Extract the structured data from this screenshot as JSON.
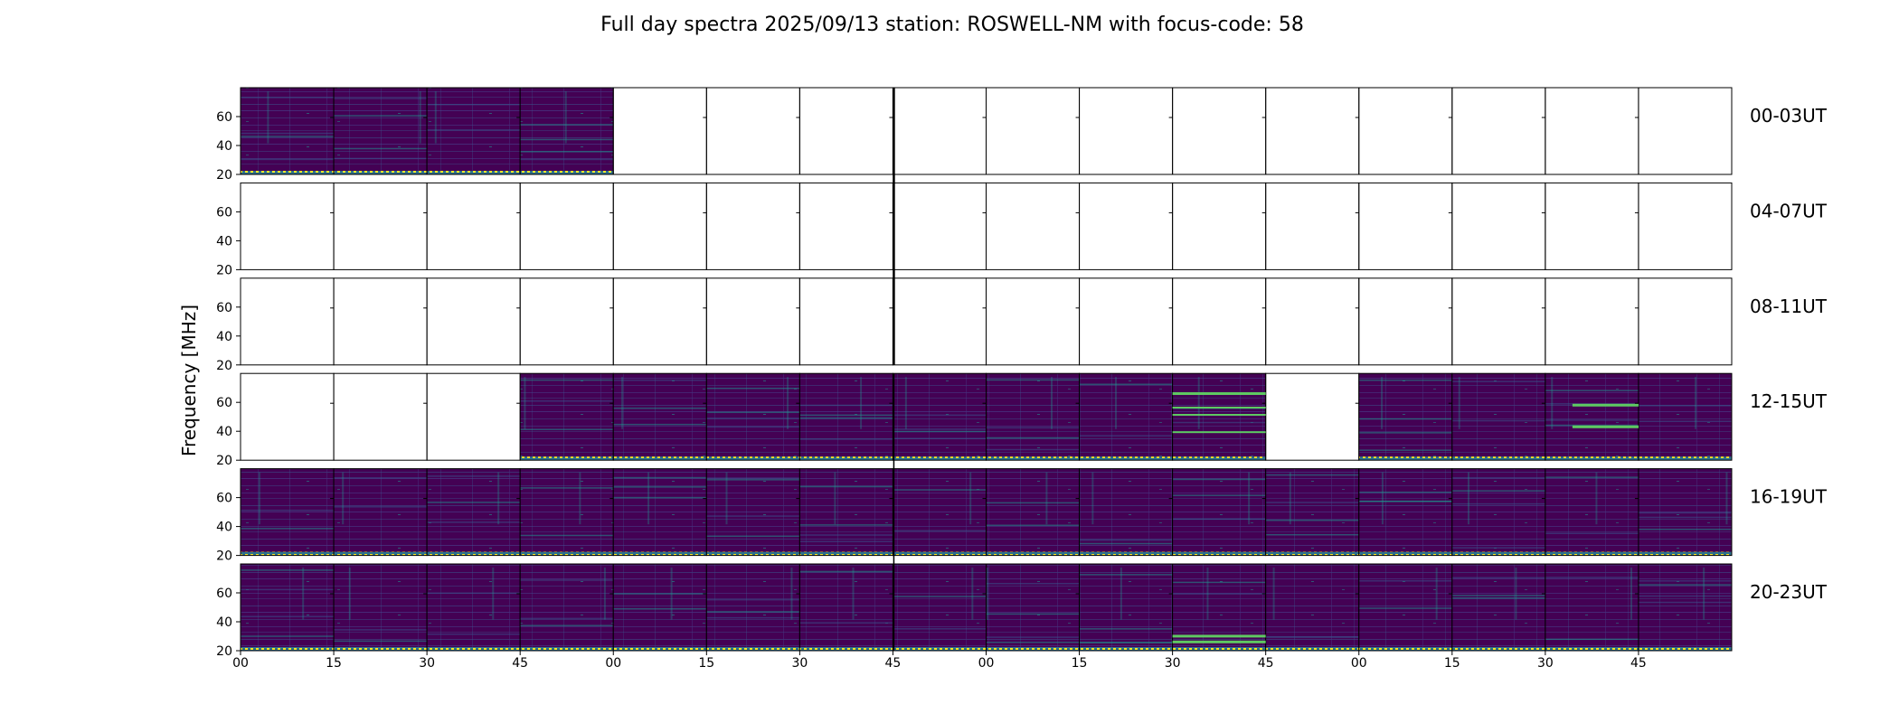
{
  "chart_data": {
    "type": "heatmap",
    "title": "Full day spectra 2025/09/13 station: ROSWELL-NM with focus-code: 58",
    "ylabel": "Frequency [MHz]",
    "xlabel": "",
    "ylim": [
      20,
      80
    ],
    "y_ticks": [
      20,
      40,
      60
    ],
    "x_tick_labels": [
      "00",
      "15",
      "30",
      "45",
      "00",
      "15",
      "30",
      "45",
      "00",
      "15",
      "30",
      "45",
      "00",
      "15",
      "30",
      "45"
    ],
    "rows": [
      {
        "label": "00-03UT",
        "present": [
          1,
          1,
          1,
          1,
          0,
          0,
          0,
          0,
          0,
          0,
          0,
          0,
          0,
          0,
          0,
          0
        ]
      },
      {
        "label": "04-07UT",
        "present": [
          0,
          0,
          0,
          0,
          0,
          0,
          0,
          0,
          0,
          0,
          0,
          0,
          0,
          0,
          0,
          0
        ]
      },
      {
        "label": "08-11UT",
        "present": [
          0,
          0,
          0,
          0,
          0,
          0,
          0,
          0,
          0,
          0,
          0,
          0,
          0,
          0,
          0,
          0
        ]
      },
      {
        "label": "12-15UT",
        "present": [
          0,
          0,
          0,
          1,
          1,
          1,
          1,
          1,
          1,
          1,
          1,
          0,
          1,
          1,
          1,
          1
        ]
      },
      {
        "label": "16-19UT",
        "present": [
          1,
          1,
          1,
          1,
          1,
          1,
          1,
          1,
          1,
          1,
          1,
          1,
          1,
          1,
          1,
          1
        ]
      },
      {
        "label": "20-23UT",
        "present": [
          1,
          1,
          1,
          1,
          1,
          1,
          1,
          1,
          1,
          1,
          1,
          1,
          1,
          1,
          1,
          1
        ]
      }
    ],
    "colormap": [
      "#440154",
      "#3b528b",
      "#21918c",
      "#5ec962",
      "#fde725"
    ]
  }
}
